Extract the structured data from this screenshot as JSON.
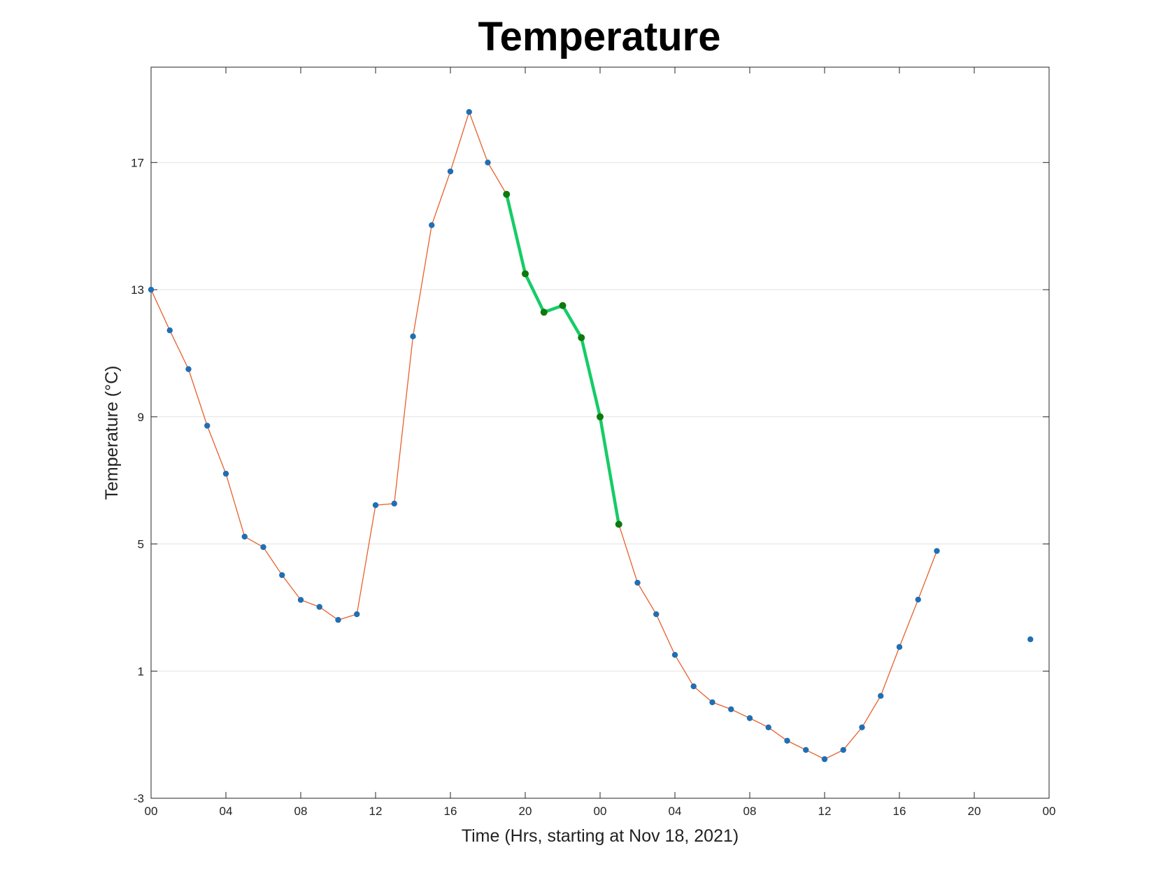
{
  "chart_data": {
    "type": "line",
    "title": "Temperature",
    "xlabel": "Time (Hrs, starting at Nov 18, 2021)",
    "ylabel": "Temperature (°C)",
    "xlim": [
      "2021-11-18 00:00",
      "2021-11-20 00:00"
    ],
    "ylim": [
      -3,
      20
    ],
    "x_tick_values": [
      "2021-11-18 00:00",
      "2021-11-18 04:00",
      "2021-11-18 08:00",
      "2021-11-18 12:00",
      "2021-11-18 16:00",
      "2021-11-18 20:00",
      "2021-11-19 00:00",
      "2021-11-19 04:00",
      "2021-11-19 08:00",
      "2021-11-19 12:00",
      "2021-11-19 16:00",
      "2021-11-19 20:00",
      "2021-11-20 00:00"
    ],
    "x_tick_labels": [
      "00",
      "04",
      "08",
      "12",
      "16",
      "20",
      "00",
      "04",
      "08",
      "12",
      "16",
      "20",
      "00"
    ],
    "y_ticks": [
      -3,
      1,
      5,
      9,
      13,
      17
    ],
    "grid": "horizontal",
    "colors": {
      "line": "#e8602c",
      "marker": "#1f6fb4",
      "highlight_line": "#15cc66",
      "highlight_marker": "#0c7a0c",
      "grid": "#e3e3e3",
      "axis": "#262626"
    },
    "series": [
      {
        "style": "line-with-markers",
        "points": [
          {
            "x": "2021-11-18 00:00",
            "y": 13.0
          },
          {
            "x": "2021-11-18 01:00",
            "y": 11.72
          },
          {
            "x": "2021-11-18 02:00",
            "y": 10.5
          },
          {
            "x": "2021-11-18 03:00",
            "y": 8.72
          },
          {
            "x": "2021-11-18 04:00",
            "y": 7.21
          },
          {
            "x": "2021-11-18 05:00",
            "y": 5.23
          },
          {
            "x": "2021-11-18 06:00",
            "y": 4.9
          },
          {
            "x": "2021-11-18 07:00",
            "y": 4.02
          },
          {
            "x": "2021-11-18 08:00",
            "y": 3.24
          },
          {
            "x": "2021-11-18 09:00",
            "y": 3.02
          },
          {
            "x": "2021-11-18 10:00",
            "y": 2.61
          },
          {
            "x": "2021-11-18 11:00",
            "y": 2.79
          },
          {
            "x": "2021-11-18 12:00",
            "y": 6.22
          },
          {
            "x": "2021-11-18 13:00",
            "y": 6.27
          },
          {
            "x": "2021-11-18 14:00",
            "y": 11.53
          },
          {
            "x": "2021-11-18 15:00",
            "y": 15.03
          },
          {
            "x": "2021-11-18 16:00",
            "y": 16.72
          },
          {
            "x": "2021-11-18 17:00",
            "y": 18.59
          },
          {
            "x": "2021-11-18 18:00",
            "y": 17.0
          },
          {
            "x": "2021-11-18 19:00",
            "y": 16.0
          },
          {
            "x": "2021-11-18 20:00",
            "y": 13.5
          },
          {
            "x": "2021-11-18 21:00",
            "y": 12.29
          },
          {
            "x": "2021-11-18 22:00",
            "y": 12.5
          },
          {
            "x": "2021-11-18 23:00",
            "y": 11.49
          },
          {
            "x": "2021-11-19 00:00",
            "y": 9.0
          },
          {
            "x": "2021-11-19 01:00",
            "y": 5.62
          },
          {
            "x": "2021-11-19 02:00",
            "y": 3.78
          },
          {
            "x": "2021-11-19 03:00",
            "y": 2.79
          },
          {
            "x": "2021-11-19 04:00",
            "y": 1.51
          },
          {
            "x": "2021-11-19 05:00",
            "y": 0.52
          },
          {
            "x": "2021-11-19 06:00",
            "y": 0.02
          },
          {
            "x": "2021-11-19 07:00",
            "y": -0.2
          },
          {
            "x": "2021-11-19 08:00",
            "y": -0.48
          },
          {
            "x": "2021-11-19 09:00",
            "y": -0.77
          },
          {
            "x": "2021-11-19 10:00",
            "y": -1.19
          },
          {
            "x": "2021-11-19 11:00",
            "y": -1.48
          },
          {
            "x": "2021-11-19 12:00",
            "y": -1.77
          },
          {
            "x": "2021-11-19 13:00",
            "y": -1.48
          },
          {
            "x": "2021-11-19 14:00",
            "y": -0.77
          },
          {
            "x": "2021-11-19 15:00",
            "y": 0.22
          },
          {
            "x": "2021-11-19 16:00",
            "y": 1.76
          },
          {
            "x": "2021-11-19 17:00",
            "y": 3.25
          },
          {
            "x": "2021-11-19 18:00",
            "y": 4.78
          }
        ]
      },
      {
        "style": "markers-only",
        "points": [
          {
            "x": "2021-11-19 23:00",
            "y": 2.0
          }
        ]
      },
      {
        "style": "highlight",
        "points": [
          {
            "x": "2021-11-18 19:00",
            "y": 16.0
          },
          {
            "x": "2021-11-18 20:00",
            "y": 13.5
          },
          {
            "x": "2021-11-18 21:00",
            "y": 12.29
          },
          {
            "x": "2021-11-18 22:00",
            "y": 12.5
          },
          {
            "x": "2021-11-18 23:00",
            "y": 11.49
          },
          {
            "x": "2021-11-19 00:00",
            "y": 9.0
          },
          {
            "x": "2021-11-19 01:00",
            "y": 5.62
          }
        ]
      }
    ]
  }
}
